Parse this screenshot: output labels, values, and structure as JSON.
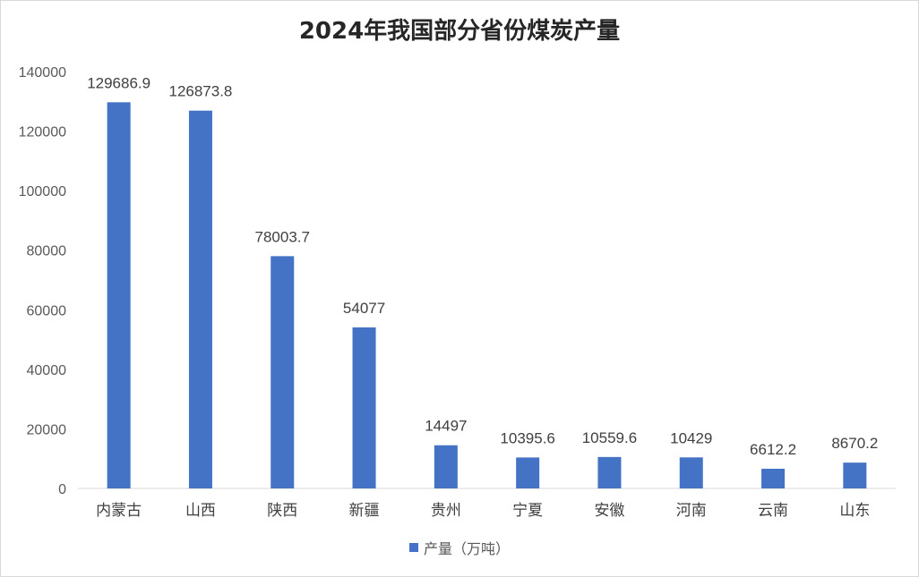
{
  "chart_data": {
    "type": "bar",
    "title": "2024年我国部分省份煤炭产量",
    "categories": [
      "内蒙古",
      "山西",
      "陕西",
      "新疆",
      "贵州",
      "宁夏",
      "安徽",
      "河南",
      "云南",
      "山东"
    ],
    "series": [
      {
        "name": "产量（万吨）",
        "values": [
          129686.9,
          126873.8,
          78003.7,
          54077,
          14497,
          10395.6,
          10559.6,
          10429,
          6612.2,
          8670.2
        ],
        "data_labels": [
          "129686.9",
          "126873.8",
          "78003.7",
          "54077",
          "14497",
          "10395.6",
          "10559.6",
          "10429",
          "6612.2",
          "8670.2"
        ]
      }
    ],
    "y_ticks": [
      "0",
      "20000",
      "40000",
      "60000",
      "80000",
      "100000",
      "120000",
      "140000"
    ],
    "ylim": [
      0,
      140000
    ],
    "grid": false,
    "legend_position": "bottom",
    "colors": {
      "bar": "#4472c4",
      "axis": "#d9d9d9"
    }
  }
}
